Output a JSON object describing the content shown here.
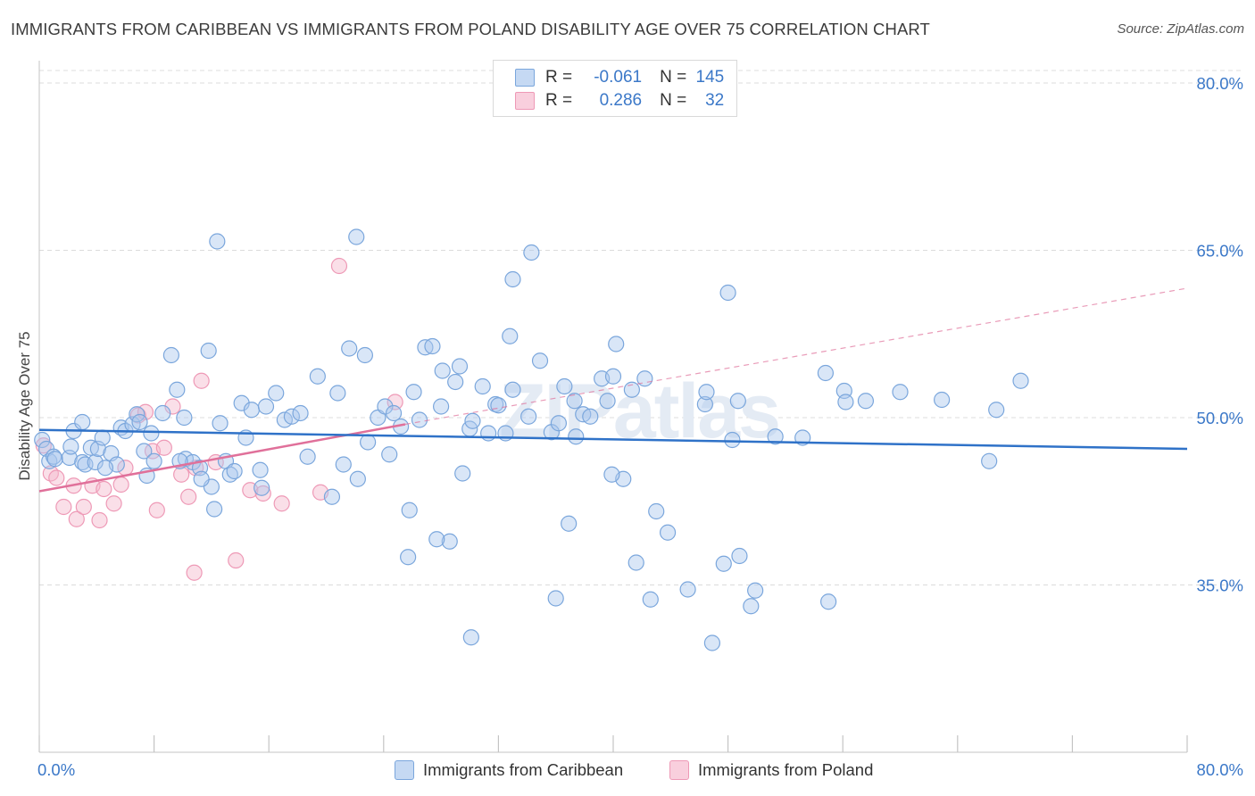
{
  "title": "IMMIGRANTS FROM CARIBBEAN VS IMMIGRANTS FROM POLAND DISABILITY AGE OVER 75 CORRELATION CHART",
  "source": "Source: ZipAtlas.com",
  "watermark": "ZIPatlas",
  "legend": {
    "rows": [
      {
        "r_label": "R =",
        "r_value": "-0.061",
        "n_label": "N =",
        "n_value": "145"
      },
      {
        "r_label": "R =",
        "r_value": "0.286",
        "n_label": "N =",
        "n_value": "32"
      }
    ]
  },
  "bottom_legend": {
    "caribbean": "Immigrants from Caribbean",
    "poland": "Immigrants from Poland"
  },
  "colors": {
    "caribbean_fill": "#aac8ee",
    "caribbean_stroke": "#7aa6dc",
    "caribbean_line": "#2f72c8",
    "poland_fill": "#f5b8cc",
    "poland_stroke": "#ee99b6",
    "poland_line": "#e0709a",
    "axis_label": "#3b78c8",
    "grid": "#dcdcdc"
  },
  "chart_data": {
    "type": "scatter",
    "title": "IMMIGRANTS FROM CARIBBEAN VS IMMIGRANTS FROM POLAND DISABILITY AGE OVER 75 CORRELATION CHART",
    "xlabel": "",
    "ylabel": "Disability Age Over 75",
    "xlim": [
      0,
      80
    ],
    "ylim": [
      20,
      82
    ],
    "x_tick_labels": [
      "0.0%",
      "80.0%"
    ],
    "y_ticks": [
      35,
      50,
      65,
      80
    ],
    "y_tick_labels": [
      "35.0%",
      "50.0%",
      "65.0%",
      "80.0%"
    ],
    "series": [
      {
        "name": "Immigrants from Caribbean",
        "r": -0.061,
        "n": 145,
        "trend": {
          "x": [
            0,
            80
          ],
          "y": [
            48.9,
            47.2
          ],
          "style": "solid"
        },
        "points": [
          [
            0.2,
            48.0
          ],
          [
            0.5,
            47.2
          ],
          [
            0.7,
            46.1
          ],
          [
            1.0,
            46.5
          ],
          [
            1.1,
            46.3
          ],
          [
            2.1,
            46.4
          ],
          [
            2.2,
            47.4
          ],
          [
            3.0,
            46.0
          ],
          [
            3.2,
            45.8
          ],
          [
            2.4,
            48.8
          ],
          [
            3.0,
            49.6
          ],
          [
            3.6,
            47.3
          ],
          [
            3.9,
            46.0
          ],
          [
            4.1,
            47.2
          ],
          [
            4.4,
            48.2
          ],
          [
            5.0,
            46.8
          ],
          [
            5.4,
            45.8
          ],
          [
            5.7,
            49.1
          ],
          [
            6.0,
            48.8
          ],
          [
            6.5,
            49.4
          ],
          [
            6.8,
            50.3
          ],
          [
            7.0,
            49.6
          ],
          [
            7.3,
            47.0
          ],
          [
            7.5,
            44.8
          ],
          [
            7.8,
            48.6
          ],
          [
            8.0,
            46.1
          ],
          [
            9.2,
            55.6
          ],
          [
            9.6,
            52.5
          ],
          [
            10.1,
            50.0
          ],
          [
            10.2,
            46.3
          ],
          [
            10.7,
            46.0
          ],
          [
            11.2,
            45.5
          ],
          [
            11.8,
            56.0
          ],
          [
            12.0,
            43.8
          ],
          [
            12.2,
            41.8
          ],
          [
            12.6,
            49.5
          ],
          [
            13.0,
            46.1
          ],
          [
            13.3,
            44.9
          ],
          [
            14.1,
            51.3
          ],
          [
            14.4,
            48.2
          ],
          [
            14.8,
            50.7
          ],
          [
            15.4,
            45.3
          ],
          [
            15.8,
            51.0
          ],
          [
            16.5,
            52.2
          ],
          [
            17.1,
            49.8
          ],
          [
            17.6,
            50.1
          ],
          [
            18.2,
            50.4
          ],
          [
            18.7,
            46.5
          ],
          [
            19.4,
            53.7
          ],
          [
            20.4,
            42.9
          ],
          [
            20.8,
            52.2
          ],
          [
            21.2,
            45.8
          ],
          [
            21.6,
            56.2
          ],
          [
            22.2,
            44.5
          ],
          [
            22.7,
            55.6
          ],
          [
            22.9,
            47.8
          ],
          [
            23.6,
            50.0
          ],
          [
            24.1,
            51.0
          ],
          [
            24.4,
            46.7
          ],
          [
            24.7,
            50.4
          ],
          [
            25.2,
            49.2
          ],
          [
            25.8,
            41.7
          ],
          [
            26.1,
            52.3
          ],
          [
            26.5,
            49.8
          ],
          [
            26.9,
            56.3
          ],
          [
            27.4,
            56.4
          ],
          [
            28.0,
            51.0
          ],
          [
            28.1,
            54.2
          ],
          [
            28.6,
            38.9
          ],
          [
            29.0,
            53.2
          ],
          [
            29.3,
            54.6
          ],
          [
            29.5,
            45.0
          ],
          [
            30.0,
            49.0
          ],
          [
            30.2,
            49.7
          ],
          [
            30.9,
            52.8
          ],
          [
            31.3,
            48.6
          ],
          [
            31.8,
            51.2
          ],
          [
            32.0,
            51.1
          ],
          [
            32.5,
            48.6
          ],
          [
            33.0,
            52.5
          ],
          [
            34.1,
            50.1
          ],
          [
            34.9,
            55.1
          ],
          [
            35.7,
            48.7
          ],
          [
            36.2,
            49.5
          ],
          [
            36.6,
            52.8
          ],
          [
            37.4,
            48.3
          ],
          [
            37.9,
            50.3
          ],
          [
            38.4,
            50.1
          ],
          [
            39.2,
            53.5
          ],
          [
            39.6,
            51.5
          ],
          [
            40.0,
            53.7
          ],
          [
            40.2,
            56.6
          ],
          [
            40.7,
            44.5
          ],
          [
            41.3,
            52.5
          ],
          [
            41.6,
            37.0
          ],
          [
            42.2,
            53.5
          ],
          [
            43.0,
            41.6
          ],
          [
            43.8,
            39.7
          ],
          [
            46.4,
            51.2
          ],
          [
            46.5,
            52.3
          ],
          [
            48.3,
            48.0
          ],
          [
            48.7,
            51.5
          ],
          [
            48.8,
            37.6
          ],
          [
            49.9,
            34.5
          ],
          [
            56.1,
            52.4
          ],
          [
            56.2,
            51.4
          ],
          [
            54.8,
            54.0
          ],
          [
            51.3,
            48.3
          ],
          [
            53.2,
            48.2
          ],
          [
            57.6,
            51.5
          ],
          [
            60.0,
            52.3
          ],
          [
            62.9,
            51.6
          ],
          [
            66.2,
            46.1
          ],
          [
            66.7,
            50.7
          ],
          [
            68.4,
            53.3
          ],
          [
            13.6,
            45.2
          ],
          [
            11.3,
            44.5
          ],
          [
            15.5,
            43.7
          ],
          [
            12.4,
            65.8
          ],
          [
            22.1,
            66.2
          ],
          [
            33.0,
            62.4
          ],
          [
            34.3,
            64.8
          ],
          [
            32.8,
            57.3
          ],
          [
            48.0,
            61.2
          ],
          [
            39.9,
            44.9
          ],
          [
            30.1,
            30.3
          ],
          [
            36.0,
            33.8
          ],
          [
            36.9,
            40.5
          ],
          [
            25.7,
            37.5
          ],
          [
            27.7,
            39.1
          ],
          [
            37.3,
            51.5
          ],
          [
            45.2,
            34.6
          ],
          [
            47.7,
            36.9
          ],
          [
            46.9,
            29.8
          ],
          [
            49.6,
            33.1
          ],
          [
            55.0,
            33.5
          ],
          [
            42.6,
            33.7
          ],
          [
            8.6,
            50.4
          ],
          [
            9.8,
            46.1
          ],
          [
            4.6,
            45.5
          ]
        ]
      },
      {
        "name": "Immigrants from Poland",
        "r": 0.286,
        "n": 32,
        "trend": {
          "x": [
            0,
            25.5
          ],
          "y": [
            43.4,
            49.4
          ],
          "style": "solid"
        },
        "trend_extension": {
          "x": [
            25.5,
            80
          ],
          "y": [
            49.4,
            61.6
          ],
          "style": "dashed"
        },
        "points": [
          [
            0.3,
            47.5
          ],
          [
            0.8,
            45.0
          ],
          [
            1.2,
            44.6
          ],
          [
            1.7,
            42.0
          ],
          [
            2.4,
            43.9
          ],
          [
            2.6,
            40.9
          ],
          [
            3.1,
            42.0
          ],
          [
            3.7,
            43.9
          ],
          [
            4.2,
            40.8
          ],
          [
            4.5,
            43.6
          ],
          [
            5.2,
            42.3
          ],
          [
            5.7,
            44.0
          ],
          [
            6.0,
            45.5
          ],
          [
            6.9,
            50.2
          ],
          [
            7.4,
            50.5
          ],
          [
            7.9,
            47.0
          ],
          [
            8.2,
            41.7
          ],
          [
            8.7,
            47.3
          ],
          [
            9.3,
            51.0
          ],
          [
            9.9,
            44.9
          ],
          [
            10.4,
            42.9
          ],
          [
            10.9,
            45.5
          ],
          [
            11.3,
            53.3
          ],
          [
            12.3,
            46.0
          ],
          [
            13.7,
            37.2
          ],
          [
            14.7,
            43.5
          ],
          [
            15.6,
            43.2
          ],
          [
            16.9,
            42.3
          ],
          [
            19.6,
            43.3
          ],
          [
            20.9,
            63.6
          ],
          [
            24.8,
            51.4
          ],
          [
            10.8,
            36.1
          ]
        ]
      }
    ]
  }
}
